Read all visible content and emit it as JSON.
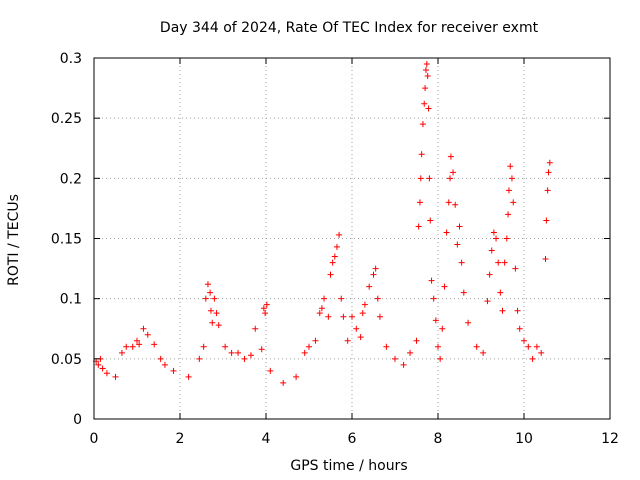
{
  "chart_data": {
    "type": "scatter",
    "title": "Day 344 of 2024, Rate Of TEC Index for receiver exmt",
    "xlabel": "GPS time / hours",
    "ylabel": "ROTI / TECUs",
    "xlim": [
      0,
      12
    ],
    "ylim": [
      0,
      0.3
    ],
    "xticks": [
      0,
      2,
      4,
      6,
      8,
      10,
      12
    ],
    "yticks": [
      0,
      0.05,
      0.1,
      0.15,
      0.2,
      0.25,
      0.3
    ],
    "xtick_labels": [
      "0",
      "2",
      "4",
      "6",
      "8",
      "10",
      "12"
    ],
    "ytick_labels": [
      "0",
      "0.05",
      "0.1",
      "0.15",
      "0.2",
      "0.25",
      "0.3"
    ],
    "grid": true,
    "marker": "+",
    "color": "#ff0000",
    "series": [
      {
        "name": "ROTI",
        "points": [
          [
            0.05,
            0.048
          ],
          [
            0.1,
            0.045
          ],
          [
            0.15,
            0.05
          ],
          [
            0.2,
            0.042
          ],
          [
            0.3,
            0.038
          ],
          [
            0.5,
            0.035
          ],
          [
            0.65,
            0.055
          ],
          [
            0.75,
            0.06
          ],
          [
            0.9,
            0.06
          ],
          [
            1.0,
            0.065
          ],
          [
            1.05,
            0.062
          ],
          [
            1.15,
            0.075
          ],
          [
            1.25,
            0.07
          ],
          [
            1.4,
            0.062
          ],
          [
            1.55,
            0.05
          ],
          [
            1.65,
            0.045
          ],
          [
            1.85,
            0.04
          ],
          [
            2.2,
            0.035
          ],
          [
            2.45,
            0.05
          ],
          [
            2.55,
            0.06
          ],
          [
            2.6,
            0.1
          ],
          [
            2.65,
            0.112
          ],
          [
            2.7,
            0.105
          ],
          [
            2.72,
            0.09
          ],
          [
            2.75,
            0.08
          ],
          [
            2.8,
            0.1
          ],
          [
            2.85,
            0.088
          ],
          [
            2.9,
            0.078
          ],
          [
            3.05,
            0.06
          ],
          [
            3.2,
            0.055
          ],
          [
            3.35,
            0.055
          ],
          [
            3.5,
            0.05
          ],
          [
            3.65,
            0.053
          ],
          [
            3.75,
            0.075
          ],
          [
            3.9,
            0.058
          ],
          [
            3.95,
            0.092
          ],
          [
            3.98,
            0.088
          ],
          [
            4.02,
            0.095
          ],
          [
            4.1,
            0.04
          ],
          [
            4.4,
            0.03
          ],
          [
            4.7,
            0.035
          ],
          [
            4.9,
            0.055
          ],
          [
            5.0,
            0.06
          ],
          [
            5.15,
            0.065
          ],
          [
            5.25,
            0.088
          ],
          [
            5.3,
            0.092
          ],
          [
            5.35,
            0.1
          ],
          [
            5.45,
            0.085
          ],
          [
            5.5,
            0.12
          ],
          [
            5.55,
            0.13
          ],
          [
            5.6,
            0.135
          ],
          [
            5.65,
            0.143
          ],
          [
            5.7,
            0.153
          ],
          [
            5.75,
            0.1
          ],
          [
            5.8,
            0.085
          ],
          [
            5.9,
            0.065
          ],
          [
            6.0,
            0.085
          ],
          [
            6.1,
            0.075
          ],
          [
            6.2,
            0.068
          ],
          [
            6.25,
            0.088
          ],
          [
            6.3,
            0.095
          ],
          [
            6.4,
            0.11
          ],
          [
            6.5,
            0.12
          ],
          [
            6.55,
            0.125
          ],
          [
            6.6,
            0.1
          ],
          [
            6.65,
            0.085
          ],
          [
            6.8,
            0.06
          ],
          [
            7.0,
            0.05
          ],
          [
            7.2,
            0.045
          ],
          [
            7.35,
            0.055
          ],
          [
            7.5,
            0.065
          ],
          [
            7.55,
            0.16
          ],
          [
            7.58,
            0.18
          ],
          [
            7.6,
            0.2
          ],
          [
            7.62,
            0.22
          ],
          [
            7.65,
            0.245
          ],
          [
            7.68,
            0.262
          ],
          [
            7.7,
            0.275
          ],
          [
            7.72,
            0.29
          ],
          [
            7.74,
            0.295
          ],
          [
            7.76,
            0.285
          ],
          [
            7.78,
            0.258
          ],
          [
            7.8,
            0.2
          ],
          [
            7.82,
            0.165
          ],
          [
            7.85,
            0.115
          ],
          [
            7.9,
            0.1
          ],
          [
            7.95,
            0.082
          ],
          [
            8.0,
            0.06
          ],
          [
            8.05,
            0.05
          ],
          [
            8.1,
            0.075
          ],
          [
            8.15,
            0.11
          ],
          [
            8.2,
            0.155
          ],
          [
            8.25,
            0.18
          ],
          [
            8.28,
            0.2
          ],
          [
            8.3,
            0.218
          ],
          [
            8.35,
            0.205
          ],
          [
            8.4,
            0.178
          ],
          [
            8.45,
            0.145
          ],
          [
            8.5,
            0.16
          ],
          [
            8.55,
            0.13
          ],
          [
            8.6,
            0.105
          ],
          [
            8.7,
            0.08
          ],
          [
            8.9,
            0.06
          ],
          [
            9.05,
            0.055
          ],
          [
            9.15,
            0.098
          ],
          [
            9.2,
            0.12
          ],
          [
            9.25,
            0.14
          ],
          [
            9.3,
            0.155
          ],
          [
            9.35,
            0.15
          ],
          [
            9.4,
            0.13
          ],
          [
            9.45,
            0.105
          ],
          [
            9.5,
            0.09
          ],
          [
            9.55,
            0.13
          ],
          [
            9.6,
            0.15
          ],
          [
            9.63,
            0.17
          ],
          [
            9.65,
            0.19
          ],
          [
            9.68,
            0.21
          ],
          [
            9.72,
            0.2
          ],
          [
            9.75,
            0.18
          ],
          [
            9.8,
            0.125
          ],
          [
            9.85,
            0.09
          ],
          [
            9.9,
            0.075
          ],
          [
            10.0,
            0.065
          ],
          [
            10.1,
            0.06
          ],
          [
            10.2,
            0.05
          ],
          [
            10.3,
            0.06
          ],
          [
            10.4,
            0.055
          ],
          [
            10.5,
            0.133
          ],
          [
            10.52,
            0.165
          ],
          [
            10.55,
            0.19
          ],
          [
            10.57,
            0.205
          ],
          [
            10.6,
            0.213
          ]
        ]
      }
    ]
  }
}
